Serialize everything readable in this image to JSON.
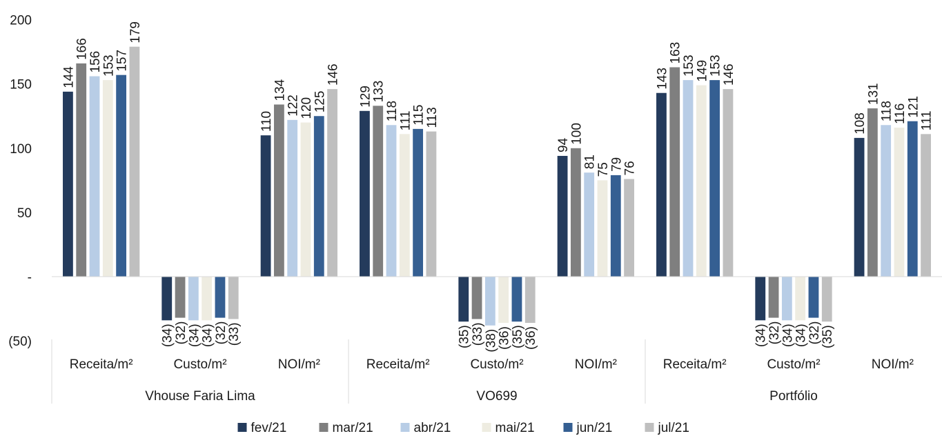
{
  "chart_data": {
    "type": "bar",
    "groups": [
      {
        "name": "Vhouse Faria Lima",
        "categories": [
          "Receita/m²",
          "Custo/m²",
          "NOI/m²"
        ]
      },
      {
        "name": "VO699",
        "categories": [
          "Receita/m²",
          "Custo/m²",
          "NOI/m²"
        ]
      },
      {
        "name": "Portfólio",
        "categories": [
          "Receita/m²",
          "Custo/m²",
          "NOI/m²"
        ]
      }
    ],
    "series": [
      {
        "name": "fev/21",
        "color": "#243b5c",
        "values": [
          144,
          -34,
          110,
          129,
          -35,
          94,
          143,
          -34,
          108
        ],
        "labels": [
          "144",
          "(34)",
          "110",
          "129",
          "(35)",
          "94",
          "143",
          "(34)",
          "108"
        ]
      },
      {
        "name": "mar/21",
        "color": "#7f7f7f",
        "values": [
          166,
          -32,
          134,
          133,
          -33,
          100,
          163,
          -32,
          131
        ],
        "labels": [
          "166",
          "(32)",
          "134",
          "133",
          "(33)",
          "100",
          "163",
          "(32)",
          "131"
        ]
      },
      {
        "name": "abr/21",
        "color": "#b8cde6",
        "values": [
          156,
          -34,
          122,
          118,
          -38,
          81,
          153,
          -34,
          118
        ],
        "labels": [
          "156",
          "(34)",
          "122",
          "118",
          "(38)",
          "81",
          "153",
          "(34)",
          "118"
        ]
      },
      {
        "name": "mai/21",
        "color": "#eeece1",
        "values": [
          153,
          -34,
          120,
          111,
          -36,
          75,
          149,
          -34,
          116
        ],
        "labels": [
          "153",
          "(34)",
          "120",
          "111",
          "(36)",
          "75",
          "149",
          "(34)",
          "116"
        ]
      },
      {
        "name": "jun/21",
        "color": "#355f92",
        "values": [
          157,
          -32,
          125,
          115,
          -35,
          79,
          153,
          -32,
          121
        ],
        "labels": [
          "157",
          "(32)",
          "125",
          "115",
          "(35)",
          "79",
          "153",
          "(32)",
          "121"
        ]
      },
      {
        "name": "jul/21",
        "color": "#bfbfbf",
        "values": [
          179,
          -33,
          146,
          113,
          -36,
          76,
          146,
          -35,
          111
        ],
        "labels": [
          "179",
          "(33)",
          "146",
          "113",
          "(36)",
          "76",
          "146",
          "(35)",
          "111"
        ]
      }
    ],
    "ylim": [
      -50,
      200
    ],
    "yticks": [
      {
        "value": 200,
        "label": "200"
      },
      {
        "value": 150,
        "label": "150"
      },
      {
        "value": 100,
        "label": "100"
      },
      {
        "value": 50,
        "label": "50"
      },
      {
        "value": 0,
        "label": "-"
      },
      {
        "value": -50,
        "label": "(50)"
      }
    ],
    "grid": false,
    "legend_position": "bottom"
  }
}
